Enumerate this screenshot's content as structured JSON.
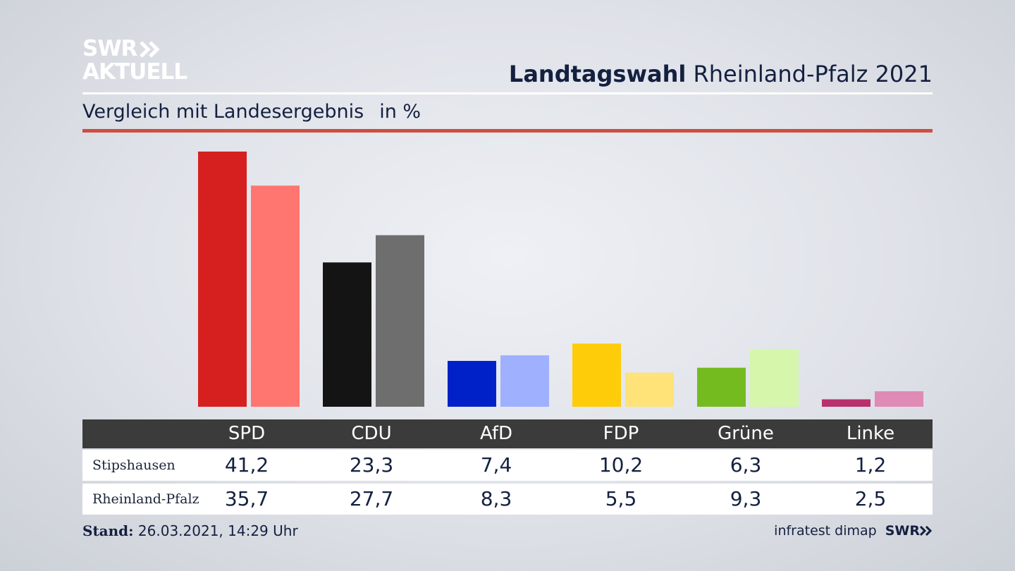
{
  "brand": {
    "line1": "SWR",
    "line2": "AKTUELL"
  },
  "header": {
    "title_bold": "Landtagswahl",
    "title_rest": "Rheinland-Pfalz 2021"
  },
  "subtitle": {
    "text": "Vergleich mit Landesergebnis",
    "unit": "in %"
  },
  "footer": {
    "stand_label": "Stand:",
    "stand_value": "26.03.2021, 14:29 Uhr",
    "source": "infratest dimap",
    "source_brand": "SWR"
  },
  "colors": {
    "accent_rule": "#cd4f3f",
    "local": [
      "#d62020",
      "#141414",
      "#0021c8",
      "#ffcc0a",
      "#74bb20",
      "#b8306c"
    ],
    "state": [
      "#ff7570",
      "#6e6e6e",
      "#9fb0ff",
      "#ffe278",
      "#d6f6ab",
      "#e08ab6"
    ]
  },
  "chart_data": {
    "type": "bar",
    "categories": [
      "SPD",
      "CDU",
      "AfD",
      "FDP",
      "Grüne",
      "Linke"
    ],
    "series": [
      {
        "name": "Stipshausen",
        "values": [
          41.2,
          23.3,
          7.4,
          10.2,
          6.3,
          1.2
        ]
      },
      {
        "name": "Rheinland-Pfalz",
        "values": [
          35.7,
          27.7,
          8.3,
          5.5,
          9.3,
          2.5
        ]
      }
    ],
    "series_display": [
      [
        "41,2",
        "23,3",
        "7,4",
        "10,2",
        "6,3",
        "1,2"
      ],
      [
        "35,7",
        "27,7",
        "8,3",
        "5,5",
        "9,3",
        "2,5"
      ]
    ],
    "ylim": [
      0,
      41.2
    ],
    "grid": false,
    "legend": "table-below"
  }
}
